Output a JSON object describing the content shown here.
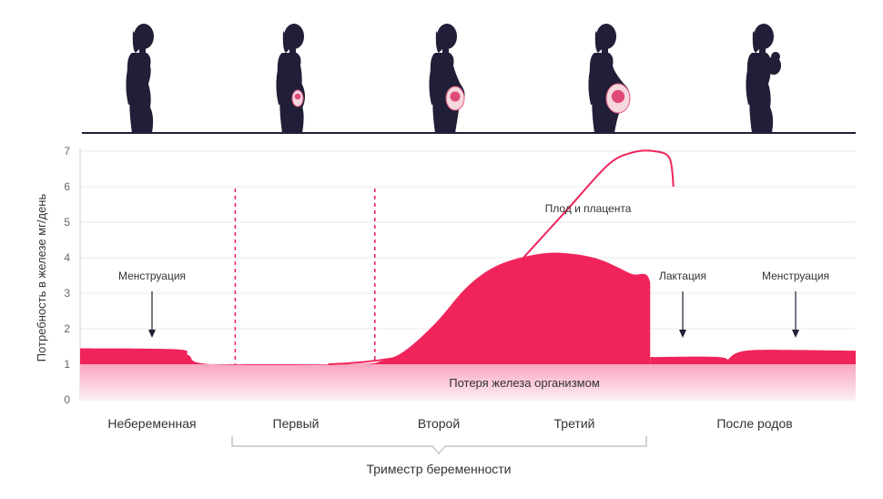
{
  "chart_data": {
    "type": "area",
    "ylabel": "Потребность в железе мг/день",
    "ylim": [
      0,
      7
    ],
    "yticks": [
      0,
      1,
      2,
      3,
      4,
      5,
      6,
      7
    ],
    "phases": [
      "Небеременная",
      "Первый",
      "Второй",
      "Третий",
      "После родов"
    ],
    "bracket_label": "Триместр беременности",
    "baseline_label": "Потеря железа организмом",
    "fetus_curve_label": "Плод и плацента",
    "annotations": {
      "menstruation_left": "Менструация",
      "lactation": "Лактация",
      "menstruation_right": "Менструация"
    },
    "main_area": [
      {
        "x": 0,
        "y": 1.45
      },
      {
        "x": 1.25,
        "y": 1.42
      },
      {
        "x": 1.4,
        "y": 1.25
      },
      {
        "x": 1.7,
        "y": 1.0
      },
      {
        "x": 3.5,
        "y": 1.0
      },
      {
        "x": 3.9,
        "y": 1.1
      },
      {
        "x": 4.2,
        "y": 1.4
      },
      {
        "x": 4.6,
        "y": 2.2
      },
      {
        "x": 5.0,
        "y": 3.2
      },
      {
        "x": 5.4,
        "y": 3.8
      },
      {
        "x": 5.9,
        "y": 4.1
      },
      {
        "x": 6.3,
        "y": 4.12
      },
      {
        "x": 6.7,
        "y": 3.95
      },
      {
        "x": 7.1,
        "y": 3.55
      },
      {
        "x": 7.35,
        "y": 3.3
      },
      {
        "x": 7.35,
        "y": 1.0
      }
    ],
    "lactation_area": [
      {
        "x": 7.35,
        "y": 1.2
      },
      {
        "x": 8.25,
        "y": 1.2
      },
      {
        "x": 8.35,
        "y": 1.0
      }
    ],
    "postpartum_area": [
      {
        "x": 8.3,
        "y": 1.0
      },
      {
        "x": 8.45,
        "y": 1.3
      },
      {
        "x": 8.7,
        "y": 1.4
      },
      {
        "x": 9.3,
        "y": 1.4
      },
      {
        "x": 10.0,
        "y": 1.38
      }
    ],
    "fetus_curve": [
      {
        "x": 3.2,
        "y": 1.0
      },
      {
        "x": 3.6,
        "y": 1.05
      },
      {
        "x": 4.1,
        "y": 1.2
      },
      {
        "x": 4.5,
        "y": 1.5
      },
      {
        "x": 4.9,
        "y": 2.1
      },
      {
        "x": 5.3,
        "y": 3.0
      },
      {
        "x": 5.8,
        "y": 4.2
      },
      {
        "x": 6.3,
        "y": 5.4
      },
      {
        "x": 6.8,
        "y": 6.6
      },
      {
        "x": 7.1,
        "y": 6.95
      },
      {
        "x": 7.4,
        "y": 7.0
      },
      {
        "x": 7.6,
        "y": 6.8
      },
      {
        "x": 7.65,
        "y": 6.0
      }
    ],
    "phase_dividers_x": [
      2.0,
      3.8
    ],
    "colors": {
      "area": "#f0245a",
      "baseline_top": "#f9a6bf",
      "baseline_bottom": "#fdeef3",
      "divider": "#f0245a",
      "silhouette": "#211e37",
      "grid": "#e8e8ee"
    },
    "silhouettes": [
      "woman-silhouette",
      "pregnant-silhouette-early",
      "pregnant-silhouette-mid",
      "pregnant-silhouette-late",
      "woman-with-baby-silhouette"
    ]
  }
}
